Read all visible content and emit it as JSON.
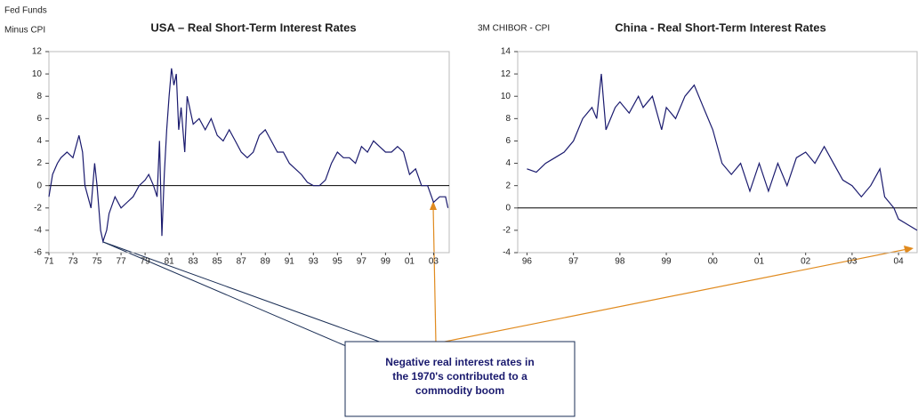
{
  "chart_data": [
    {
      "type": "line",
      "title": "USA – Real Short-Term Interest Rates",
      "y_label": [
        "Fed Funds",
        "Minus CPI"
      ],
      "x": [
        1971,
        1971.3,
        1971.7,
        1972,
        1972.5,
        1973,
        1973.5,
        1973.8,
        1974,
        1974.5,
        1974.8,
        1975,
        1975.3,
        1975.5,
        1975.8,
        1976,
        1976.5,
        1977,
        1977.5,
        1978,
        1978.5,
        1979,
        1979.3,
        1979.7,
        1980,
        1980.2,
        1980.4,
        1980.6,
        1980.8,
        1981,
        1981.2,
        1981.4,
        1981.6,
        1981.8,
        1982,
        1982.3,
        1982.5,
        1983,
        1983.5,
        1984,
        1984.5,
        1985,
        1985.5,
        1986,
        1986.5,
        1987,
        1987.5,
        1988,
        1988.5,
        1989,
        1989.5,
        1990,
        1990.5,
        1991,
        1991.5,
        1992,
        1992.5,
        1993,
        1993.5,
        1994,
        1994.5,
        1995,
        1995.5,
        1996,
        1996.5,
        1997,
        1997.5,
        1998,
        1998.5,
        1999,
        1999.5,
        2000,
        2000.5,
        2001,
        2001.5,
        2002,
        2002.5,
        2003,
        2003.5,
        2004,
        2004.2
      ],
      "values": [
        -1,
        1,
        2,
        2.5,
        3,
        2.5,
        4.5,
        3,
        0,
        -2,
        2,
        0,
        -4,
        -5,
        -4,
        -2.5,
        -1,
        -2,
        -1.5,
        -1,
        0,
        0.5,
        1,
        0,
        -1,
        4,
        -4.5,
        1,
        5,
        8,
        10.5,
        9,
        10,
        5,
        7,
        3,
        8,
        5.5,
        6,
        5,
        6,
        4.5,
        4,
        5,
        4,
        3,
        2.5,
        3,
        4.5,
        5,
        4,
        3,
        3,
        2,
        1.5,
        1,
        0.3,
        0,
        0,
        0.5,
        2,
        3,
        2.5,
        2.5,
        2,
        3.5,
        3,
        4,
        3.5,
        3,
        3,
        3.5,
        3,
        1,
        1.5,
        0,
        0,
        -1.5,
        -1,
        -1,
        -2
      ],
      "color": "#1a1a6e",
      "zero_line": true,
      "xlim": [
        1971,
        2004.3
      ],
      "ylim": [
        -6,
        12
      ],
      "yticks": [
        -6,
        -4,
        -2,
        0,
        2,
        4,
        6,
        8,
        10,
        12
      ],
      "xticks": [
        {
          "value": 1971,
          "label": "71"
        },
        {
          "value": 1973,
          "label": "73"
        },
        {
          "value": 1975,
          "label": "75"
        },
        {
          "value": 1977,
          "label": "77"
        },
        {
          "value": 1979,
          "label": "79"
        },
        {
          "value": 1981,
          "label": "81"
        },
        {
          "value": 1983,
          "label": "83"
        },
        {
          "value": 1985,
          "label": "85"
        },
        {
          "value": 1987,
          "label": "87"
        },
        {
          "value": 1989,
          "label": "89"
        },
        {
          "value": 1991,
          "label": "91"
        },
        {
          "value": 1993,
          "label": "93"
        },
        {
          "value": 1995,
          "label": "95"
        },
        {
          "value": 1997,
          "label": "97"
        },
        {
          "value": 1999,
          "label": "99"
        },
        {
          "value": 2001,
          "label": "01"
        },
        {
          "value": 2003,
          "label": "03"
        }
      ]
    },
    {
      "type": "line",
      "title": "China - Real Short-Term Interest Rates",
      "y_label": [
        "3M CHIBOR - CPI"
      ],
      "x": [
        1996,
        1996.2,
        1996.4,
        1996.6,
        1996.8,
        1997,
        1997.2,
        1997.4,
        1997.5,
        1997.6,
        1997.7,
        1997.9,
        1998,
        1998.2,
        1998.4,
        1998.5,
        1998.7,
        1998.9,
        1999,
        1999.2,
        1999.4,
        1999.6,
        1999.8,
        2000,
        2000.2,
        2000.4,
        2000.6,
        2000.8,
        2001,
        2001.2,
        2001.4,
        2001.6,
        2001.8,
        2002,
        2002.2,
        2002.4,
        2002.6,
        2002.8,
        2003,
        2003.2,
        2003.4,
        2003.6,
        2003.7,
        2003.9,
        2004,
        2004.2,
        2004.4
      ],
      "values": [
        3.5,
        3.2,
        4,
        4.5,
        5,
        6,
        8,
        9,
        8,
        12,
        7,
        9,
        9.5,
        8.5,
        10,
        9,
        10,
        7,
        9,
        8,
        10,
        11,
        9,
        7,
        4,
        3,
        4,
        1.5,
        4,
        1.5,
        4,
        2,
        4.5,
        5,
        4,
        5.5,
        4,
        2.5,
        2,
        1,
        2,
        3.5,
        1,
        0,
        -1,
        -1.5,
        -2
      ],
      "color": "#1a1a6e",
      "zero_line": true,
      "xlim": [
        1995.8,
        2004.4
      ],
      "ylim": [
        -4,
        14
      ],
      "yticks": [
        -4,
        -2,
        0,
        2,
        4,
        6,
        8,
        10,
        12,
        14
      ],
      "xticks": [
        {
          "value": 1996,
          "label": "96"
        },
        {
          "value": 1997,
          "label": "97"
        },
        {
          "value": 1998,
          "label": "98"
        },
        {
          "value": 1999,
          "label": "99"
        },
        {
          "value": 2000,
          "label": "00"
        },
        {
          "value": 2001,
          "label": "01"
        },
        {
          "value": 2002,
          "label": "02"
        },
        {
          "value": 2003,
          "label": "03"
        },
        {
          "value": 2004,
          "label": "04"
        }
      ]
    }
  ],
  "annotation": {
    "lines": [
      "Negative real interest rates in",
      "the 1970's contributed to a",
      "commodity boom"
    ]
  }
}
